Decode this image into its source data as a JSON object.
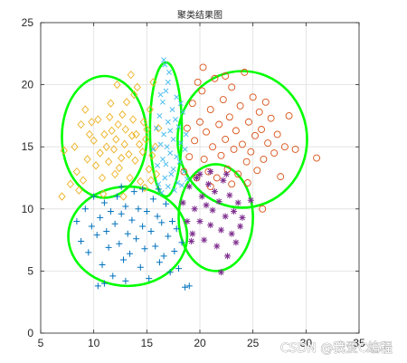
{
  "chart_data": {
    "type": "scatter",
    "title": "聚类结果图",
    "xlabel": "",
    "ylabel": "",
    "xlim": [
      5,
      35
    ],
    "ylim": [
      0,
      25
    ],
    "xticks": [
      5,
      10,
      15,
      20,
      25,
      30,
      35
    ],
    "yticks": [
      0,
      5,
      10,
      15,
      20,
      25
    ],
    "grid": true,
    "series": [
      {
        "marker": "diamond",
        "color": "#EDB120",
        "points": [
          [
            7.0,
            11.0
          ],
          [
            7.2,
            14.7
          ],
          [
            7.8,
            12.0
          ],
          [
            8.2,
            15.0
          ],
          [
            8.4,
            13.0
          ],
          [
            8.8,
            16.8
          ],
          [
            9.0,
            12.3
          ],
          [
            9.4,
            14.0
          ],
          [
            9.6,
            16.0
          ],
          [
            9.8,
            17.0
          ],
          [
            10.0,
            15.5
          ],
          [
            10.2,
            13.5
          ],
          [
            10.4,
            17.2
          ],
          [
            10.6,
            14.5
          ],
          [
            10.8,
            12.5
          ],
          [
            11.0,
            16.0
          ],
          [
            11.2,
            15.0
          ],
          [
            11.4,
            13.8
          ],
          [
            11.5,
            17.4
          ],
          [
            11.7,
            16.3
          ],
          [
            11.9,
            14.8
          ],
          [
            12.0,
            12.8
          ],
          [
            12.1,
            15.6
          ],
          [
            12.3,
            16.8
          ],
          [
            12.4,
            13.3
          ],
          [
            12.6,
            14.1
          ],
          [
            12.7,
            17.6
          ],
          [
            12.9,
            15.2
          ],
          [
            13.0,
            16.4
          ],
          [
            13.1,
            18.6
          ],
          [
            13.3,
            14.4
          ],
          [
            13.4,
            12.5
          ],
          [
            13.6,
            15.9
          ],
          [
            13.7,
            17.2
          ],
          [
            13.9,
            13.9
          ],
          [
            14.0,
            16.0
          ],
          [
            14.1,
            19.8
          ],
          [
            14.3,
            15.2
          ],
          [
            14.4,
            12.2
          ],
          [
            14.6,
            14.6
          ],
          [
            14.7,
            17.0
          ],
          [
            14.9,
            15.6
          ],
          [
            15.0,
            16.4
          ],
          [
            15.2,
            13.2
          ],
          [
            15.3,
            18.0
          ],
          [
            15.5,
            14.3
          ],
          [
            15.6,
            20.2
          ],
          [
            15.8,
            15.0
          ],
          [
            15.9,
            12.8
          ],
          [
            16.1,
            16.5
          ],
          [
            12.2,
            20.0
          ],
          [
            13.8,
            19.2
          ],
          [
            11.6,
            18.5
          ],
          [
            9.2,
            18.0
          ],
          [
            8.6,
            11.5
          ],
          [
            10.9,
            11.2
          ],
          [
            12.8,
            11.0
          ],
          [
            14.8,
            11.7
          ],
          [
            15.4,
            12.3
          ],
          [
            13.5,
            20.8
          ]
        ]
      },
      {
        "marker": "x",
        "color": "#4DBEEE",
        "points": [
          [
            15.6,
            14.8
          ],
          [
            15.9,
            16.5
          ],
          [
            16.0,
            13.5
          ],
          [
            16.1,
            12.0
          ],
          [
            16.2,
            17.5
          ],
          [
            16.3,
            15.2
          ],
          [
            16.4,
            11.3
          ],
          [
            16.5,
            18.6
          ],
          [
            16.5,
            14.0
          ],
          [
            16.6,
            16.0
          ],
          [
            16.7,
            12.5
          ],
          [
            16.8,
            19.5
          ],
          [
            16.8,
            13.6
          ],
          [
            16.9,
            15.0
          ],
          [
            17.0,
            17.0
          ],
          [
            17.0,
            11.8
          ],
          [
            17.1,
            21.0
          ],
          [
            17.2,
            14.5
          ],
          [
            17.2,
            16.3
          ],
          [
            17.3,
            12.8
          ],
          [
            17.4,
            18.0
          ],
          [
            17.5,
            13.2
          ],
          [
            17.5,
            15.6
          ],
          [
            17.6,
            11.5
          ],
          [
            17.7,
            17.2
          ],
          [
            17.8,
            14.2
          ],
          [
            17.9,
            12.1
          ],
          [
            18.0,
            16.6
          ],
          [
            18.1,
            13.8
          ],
          [
            18.2,
            15.3
          ],
          [
            18.3,
            11.9
          ],
          [
            18.4,
            17.8
          ],
          [
            18.5,
            13.0
          ],
          [
            18.6,
            14.8
          ],
          [
            18.7,
            16.0
          ],
          [
            18.8,
            12.4
          ],
          [
            16.6,
            22.0
          ],
          [
            17.0,
            20.2
          ],
          [
            16.3,
            19.2
          ],
          [
            17.8,
            19.0
          ],
          [
            18.2,
            18.5
          ],
          [
            16.7,
            21.6
          ]
        ]
      },
      {
        "marker": "circle",
        "color": "#D95319",
        "points": [
          [
            18.5,
            13.0
          ],
          [
            18.8,
            16.5
          ],
          [
            19.0,
            14.2
          ],
          [
            19.3,
            18.5
          ],
          [
            19.5,
            15.5
          ],
          [
            19.7,
            12.5
          ],
          [
            20.0,
            17.0
          ],
          [
            20.2,
            19.5
          ],
          [
            20.4,
            14.0
          ],
          [
            20.6,
            16.2
          ],
          [
            20.8,
            13.0
          ],
          [
            21.0,
            18.0
          ],
          [
            21.2,
            15.0
          ],
          [
            21.4,
            20.5
          ],
          [
            21.6,
            12.5
          ],
          [
            21.8,
            16.8
          ],
          [
            22.0,
            14.3
          ],
          [
            22.2,
            18.8
          ],
          [
            22.4,
            15.6
          ],
          [
            22.6,
            13.2
          ],
          [
            22.8,
            17.4
          ],
          [
            23.0,
            19.8
          ],
          [
            23.2,
            14.8
          ],
          [
            23.4,
            16.3
          ],
          [
            23.6,
            12.8
          ],
          [
            23.8,
            18.3
          ],
          [
            24.0,
            15.2
          ],
          [
            24.2,
            21.0
          ],
          [
            24.4,
            13.8
          ],
          [
            24.6,
            17.0
          ],
          [
            24.8,
            14.6
          ],
          [
            25.0,
            19.0
          ],
          [
            25.2,
            15.9
          ],
          [
            25.4,
            13.1
          ],
          [
            25.6,
            17.8
          ],
          [
            25.8,
            16.4
          ],
          [
            26.0,
            14.0
          ],
          [
            26.2,
            18.6
          ],
          [
            26.4,
            15.3
          ],
          [
            26.7,
            17.3
          ],
          [
            27.0,
            14.5
          ],
          [
            27.3,
            16.0
          ],
          [
            27.6,
            12.6
          ],
          [
            28.0,
            15.0
          ],
          [
            28.4,
            17.5
          ],
          [
            29.0,
            14.8
          ],
          [
            31.0,
            14.1
          ],
          [
            25.9,
            10.0
          ],
          [
            22.4,
            20.7
          ],
          [
            21.0,
            11.8
          ],
          [
            20.3,
            21.4
          ],
          [
            19.8,
            20.2
          ],
          [
            23.0,
            12.0
          ],
          [
            24.5,
            12.1
          ]
        ]
      },
      {
        "marker": "plus",
        "color": "#0072BD",
        "points": [
          [
            8.4,
            9.0
          ],
          [
            8.8,
            7.4
          ],
          [
            9.2,
            10.0
          ],
          [
            9.5,
            6.5
          ],
          [
            9.8,
            8.6
          ],
          [
            10.0,
            11.0
          ],
          [
            10.3,
            7.9
          ],
          [
            10.6,
            9.3
          ],
          [
            10.8,
            5.5
          ],
          [
            11.0,
            10.5
          ],
          [
            11.2,
            8.2
          ],
          [
            11.4,
            6.9
          ],
          [
            11.6,
            9.8
          ],
          [
            11.8,
            4.6
          ],
          [
            12.0,
            8.8
          ],
          [
            12.2,
            11.0
          ],
          [
            12.4,
            7.2
          ],
          [
            12.6,
            9.6
          ],
          [
            12.8,
            5.9
          ],
          [
            13.0,
            10.2
          ],
          [
            13.2,
            8.0
          ],
          [
            13.4,
            6.4
          ],
          [
            13.6,
            9.1
          ],
          [
            13.8,
            11.4
          ],
          [
            14.0,
            7.6
          ],
          [
            14.2,
            10.0
          ],
          [
            14.4,
            5.3
          ],
          [
            14.6,
            8.6
          ],
          [
            14.8,
            6.8
          ],
          [
            15.0,
            9.8
          ],
          [
            15.2,
            4.4
          ],
          [
            15.4,
            8.2
          ],
          [
            15.6,
            10.8
          ],
          [
            15.8,
            7.0
          ],
          [
            16.0,
            9.4
          ],
          [
            16.2,
            5.7
          ],
          [
            16.4,
            8.9
          ],
          [
            16.6,
            6.2
          ],
          [
            16.8,
            10.4
          ],
          [
            17.0,
            7.8
          ],
          [
            17.2,
            4.9
          ],
          [
            17.4,
            9.0
          ],
          [
            17.6,
            6.6
          ],
          [
            17.8,
            8.4
          ],
          [
            18.0,
            5.2
          ],
          [
            18.3,
            7.3
          ],
          [
            18.6,
            3.7
          ],
          [
            19.0,
            3.8
          ],
          [
            11.0,
            4.0
          ],
          [
            13.0,
            4.2
          ],
          [
            14.6,
            11.6
          ],
          [
            12.6,
            11.8
          ],
          [
            16.1,
            11.6
          ],
          [
            10.4,
            3.8
          ]
        ]
      },
      {
        "marker": "asterisk",
        "color": "#7E2F8E",
        "points": [
          [
            18.4,
            10.5
          ],
          [
            18.8,
            9.0
          ],
          [
            19.0,
            11.8
          ],
          [
            19.3,
            8.0
          ],
          [
            19.5,
            10.0
          ],
          [
            19.7,
            12.5
          ],
          [
            20.0,
            9.0
          ],
          [
            20.2,
            11.0
          ],
          [
            20.4,
            7.5
          ],
          [
            20.6,
            10.3
          ],
          [
            20.8,
            12.0
          ],
          [
            21.0,
            8.7
          ],
          [
            21.2,
            9.9
          ],
          [
            21.4,
            11.4
          ],
          [
            21.6,
            7.0
          ],
          [
            21.8,
            10.6
          ],
          [
            22.0,
            8.3
          ],
          [
            22.2,
            12.3
          ],
          [
            22.4,
            9.4
          ],
          [
            22.6,
            6.2
          ],
          [
            22.8,
            11.1
          ],
          [
            23.0,
            8.0
          ],
          [
            23.2,
            9.8
          ],
          [
            23.4,
            7.3
          ],
          [
            23.6,
            10.5
          ],
          [
            23.8,
            8.6
          ],
          [
            24.0,
            9.3
          ],
          [
            22.0,
            4.9
          ],
          [
            20.0,
            12.8
          ],
          [
            21.0,
            13.0
          ],
          [
            19.2,
            7.4
          ],
          [
            24.8,
            10.7
          ],
          [
            22.5,
            12.8
          ]
        ]
      }
    ],
    "boundaries": [
      {
        "color": "#00FF00",
        "cx": 11.0,
        "cy": 15.8,
        "rx": 4.0,
        "ry": 4.9
      },
      {
        "color": "#00FF00",
        "cx": 16.8,
        "cy": 16.4,
        "rx": 1.5,
        "ry": 5.4
      },
      {
        "color": "#00FF00",
        "cx": 24.0,
        "cy": 15.6,
        "rx": 6.1,
        "ry": 5.5
      },
      {
        "color": "#00FF00",
        "cx": 13.2,
        "cy": 7.8,
        "rx": 5.6,
        "ry": 4.0
      },
      {
        "color": "#00FF00",
        "cx": 21.5,
        "cy": 9.3,
        "rx": 3.5,
        "ry": 4.3
      }
    ]
  },
  "watermark": "CSDN @我爱C编程"
}
